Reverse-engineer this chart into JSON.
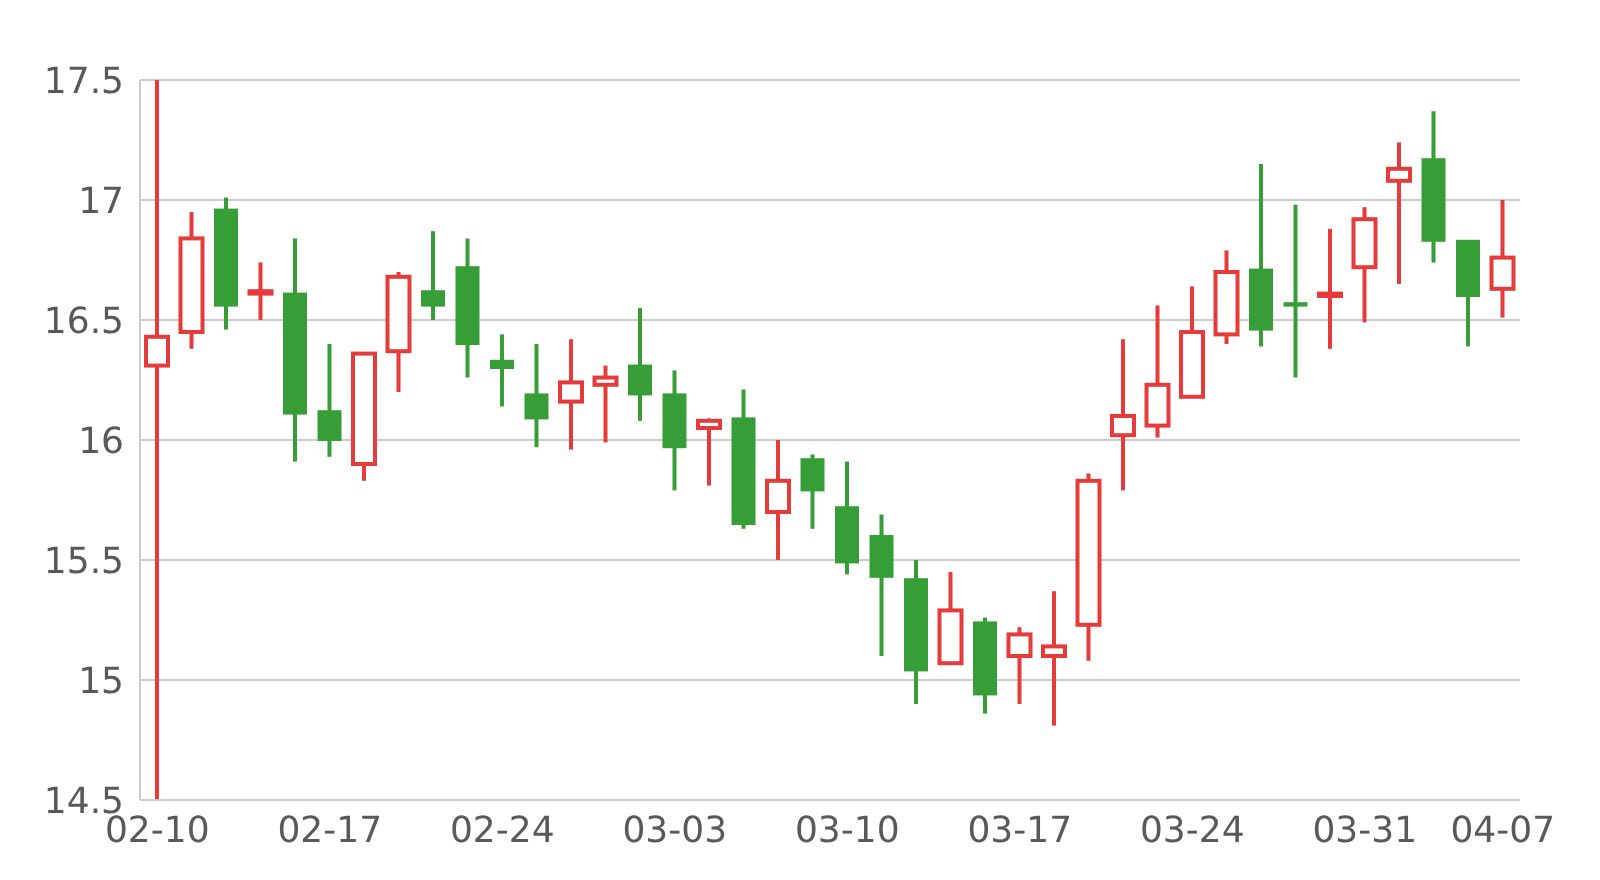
{
  "chart_data": {
    "type": "candlestick",
    "categories": [
      "02-10",
      null,
      null,
      null,
      null,
      "02-17",
      null,
      null,
      null,
      null,
      "02-24",
      null,
      null,
      null,
      null,
      "03-03",
      null,
      null,
      null,
      null,
      "03-10",
      null,
      null,
      null,
      null,
      "03-17",
      null,
      null,
      null,
      null,
      "03-24",
      null,
      null,
      null,
      null,
      "03-31",
      null,
      null,
      null,
      "04-07"
    ],
    "ohlc": [
      [
        16.31,
        17.5,
        14.5,
        16.43
      ],
      [
        16.45,
        16.95,
        16.38,
        16.84
      ],
      [
        16.96,
        17.01,
        16.46,
        16.56
      ],
      [
        16.61,
        16.74,
        16.5,
        16.62
      ],
      [
        16.61,
        16.84,
        15.91,
        16.11
      ],
      [
        16.12,
        16.4,
        15.93,
        16.0
      ],
      [
        15.9,
        16.36,
        15.83,
        16.36
      ],
      [
        16.37,
        16.7,
        16.2,
        16.68
      ],
      [
        16.62,
        16.87,
        16.5,
        16.56
      ],
      [
        16.72,
        16.84,
        16.26,
        16.4
      ],
      [
        16.33,
        16.44,
        16.14,
        16.3
      ],
      [
        16.19,
        16.4,
        15.97,
        16.09
      ],
      [
        16.16,
        16.42,
        15.96,
        16.24
      ],
      [
        16.23,
        16.31,
        15.99,
        16.26
      ],
      [
        16.31,
        16.55,
        16.08,
        16.19
      ],
      [
        16.19,
        16.29,
        15.79,
        15.97
      ],
      [
        16.05,
        16.09,
        15.81,
        16.08
      ],
      [
        16.09,
        16.21,
        15.63,
        15.65
      ],
      [
        15.7,
        16.0,
        15.5,
        15.83
      ],
      [
        15.92,
        15.94,
        15.63,
        15.79
      ],
      [
        15.72,
        15.91,
        15.44,
        15.49
      ],
      [
        15.6,
        15.69,
        15.1,
        15.43
      ],
      [
        15.42,
        15.5,
        14.9,
        15.04
      ],
      [
        15.07,
        15.45,
        15.07,
        15.29
      ],
      [
        15.24,
        15.26,
        14.86,
        14.94
      ],
      [
        15.1,
        15.22,
        14.9,
        15.19
      ],
      [
        15.1,
        15.37,
        14.81,
        15.14
      ],
      [
        15.23,
        15.86,
        15.08,
        15.83
      ],
      [
        16.02,
        16.42,
        15.79,
        16.1
      ],
      [
        16.06,
        16.56,
        16.01,
        16.23
      ],
      [
        16.18,
        16.64,
        16.18,
        16.45
      ],
      [
        16.44,
        16.79,
        16.4,
        16.7
      ],
      [
        16.71,
        17.15,
        16.39,
        16.46
      ],
      [
        16.57,
        16.98,
        16.26,
        16.56
      ],
      [
        16.6,
        16.88,
        16.38,
        16.61
      ],
      [
        16.72,
        16.97,
        16.49,
        16.92
      ],
      [
        17.08,
        17.24,
        16.65,
        17.13
      ],
      [
        17.17,
        17.37,
        16.74,
        16.83
      ],
      [
        16.83,
        16.83,
        16.39,
        16.6
      ],
      [
        16.63,
        17.0,
        16.51,
        16.76
      ]
    ],
    "colors": [
      "#e63b3b",
      "#e63b3b",
      "#379e37",
      "#e63b3b",
      "#379e37",
      "#379e37",
      "#e63b3b",
      "#e63b3b",
      "#379e37",
      "#379e37",
      "#379e37",
      "#379e37",
      "#e63b3b",
      "#e63b3b",
      "#379e37",
      "#379e37",
      "#e63b3b",
      "#379e37",
      "#e63b3b",
      "#379e37",
      "#379e37",
      "#379e37",
      "#379e37",
      "#e63b3b",
      "#379e37",
      "#e63b3b",
      "#e63b3b",
      "#e63b3b",
      "#e63b3b",
      "#e63b3b",
      "#e63b3b",
      "#e63b3b",
      "#379e37",
      "#379e37",
      "#e63b3b",
      "#e63b3b",
      "#e63b3b",
      "#379e37",
      "#379e37",
      "#e63b3b"
    ],
    "ylim": [
      14.5,
      17.5
    ],
    "yticks": [
      14.5,
      15,
      15.5,
      16,
      16.5,
      17,
      17.5
    ],
    "grid": "y"
  }
}
